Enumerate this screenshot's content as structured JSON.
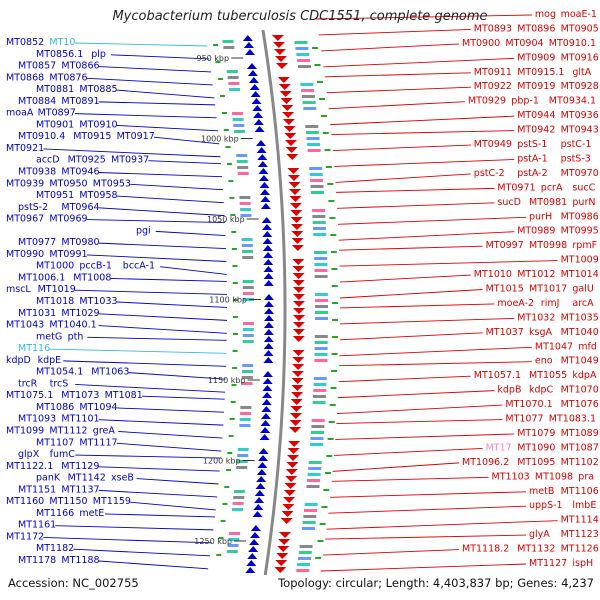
{
  "title": "Mycobacterium tuberculosis CDC1551, complete genome",
  "accession": "Accession: NC_002755",
  "summary": "Topology: circular; Length: 4,403,837 bp; Genes: 4,237",
  "colors": {
    "left_strand": "#0000cc",
    "right_strand": "#dd0000",
    "highlight": "#33bbdd",
    "pink_highlight": "#ee88cc",
    "backbone": "#888888",
    "tick_green": "#22aa22"
  },
  "scale_ticks": [
    {
      "label": "950 kbp"
    },
    {
      "label": "1000 kbp"
    },
    {
      "label": "1050 kbp"
    },
    {
      "label": "1100 kbp"
    },
    {
      "label": "1150 kbp"
    },
    {
      "label": "1200 kbp"
    },
    {
      "label": "1250 kbp"
    }
  ],
  "left_labels": [
    "MT0852",
    "MT10",
    "MT0856.1",
    "plp",
    "MT0857",
    "MT0866",
    "MT0868",
    "MT0876",
    "MT0881",
    "MT0885",
    "MT0884",
    "MT0891",
    "moaA",
    "MT0897",
    "MT0901",
    "MT0910",
    "MT0910.4",
    "MT0915",
    "MT0917",
    "MT0921",
    "accD",
    "MT0925",
    "MT0937",
    "MT0938",
    "MT0946",
    "MT0939",
    "MT0950",
    "MT0953",
    "MT0951",
    "MT0958",
    "pstS-2",
    "MT0964",
    "MT0967",
    "MT0969",
    "pgi",
    "MT0977",
    "MT0980",
    "MT0990",
    "MT0991",
    "MT1000",
    "pccB-1",
    "bccA-1",
    "MT1006.1",
    "MT1008",
    "mscL",
    "MT1019",
    "MT1018",
    "MT1033",
    "MT1031",
    "MT1029",
    "MT1043",
    "MT1040.1",
    "metG",
    "pth",
    "MT116",
    "kdpD",
    "kdpE",
    "MT1054.1",
    "MT1063",
    "trcR",
    "trcS",
    "MT1075.1",
    "MT1073",
    "MT1081",
    "MT1086",
    "MT1094",
    "MT1093",
    "MT1101",
    "MT1099",
    "MT1112",
    "greA",
    "MT1107",
    "MT1117",
    "glpX",
    "fumC",
    "MT1122.1",
    "MT1129",
    "panK",
    "MT1142",
    "xseB",
    "MT1151",
    "MT1137",
    "MT1160",
    "MT1150",
    "MT1159",
    "MT1166",
    "metE",
    "MT1161",
    "MT1172",
    "MT1182",
    "MT1178",
    "MT1188"
  ],
  "right_labels": [
    "mog",
    "moaE-1",
    "MT0893",
    "MT0896",
    "MT0905",
    "MT0900",
    "MT0904",
    "MT0910.1",
    "MT0909",
    "MT0916",
    "MT0911",
    "MT0915.1",
    "gltA",
    "MT0922",
    "MT0919",
    "MT0928",
    "MT0929",
    "pbp-1",
    "MT0934.1",
    "MT0944",
    "MT0936",
    "MT0942",
    "MT0943",
    "MT0949",
    "pstS-1",
    "pstC-1",
    "pstA-1",
    "pstS-3",
    "pstC-2",
    "pstA-2",
    "MT0970",
    "MT0971",
    "pcrA",
    "sucC",
    "sucD",
    "MT0981",
    "purN",
    "purH",
    "MT0986",
    "MT0989",
    "MT0995",
    "MT0997",
    "MT0998",
    "rpmF",
    "MT1009",
    "MT1010",
    "MT1012",
    "MT1014",
    "MT1015",
    "MT1017",
    "galU",
    "moeA-2",
    "rimJ",
    "arcA",
    "MT1032",
    "MT1035",
    "MT1037",
    "ksgA",
    "MT1040",
    "MT1047",
    "mfd",
    "eno",
    "MT1049",
    "MT1057.1",
    "MT1055",
    "kdpA",
    "kdpB",
    "kdpC",
    "MT1070",
    "MT1070.1",
    "MT1076",
    "MT1077",
    "MT1083.1",
    "MT1079",
    "MT1089",
    "MT17",
    "MT1090",
    "MT1087",
    "MT1096.2",
    "MT1095",
    "MT1102",
    "MT1103",
    "MT1098",
    "pra",
    "metB",
    "MT1106",
    "uppS-1",
    "lmbE",
    "MT1114",
    "glyA",
    "MT1123",
    "MT1118.2",
    "MT1132",
    "MT1126",
    "MT1127",
    "ispH"
  ]
}
